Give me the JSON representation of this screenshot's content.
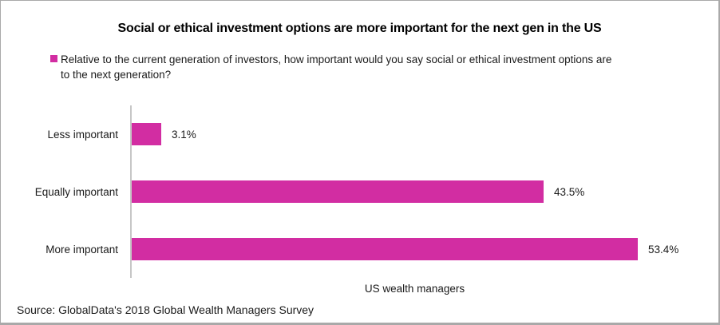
{
  "title": "Social or ethical investment options are more important for the next gen in the US",
  "legend": {
    "swatch_color": "#d22da2",
    "lines": {
      "0": "Relative to the current generation of investors, how important would you say social or ethical investment options are",
      "1": "to the next generation?"
    },
    "full_text": "Relative to the current generation of investors, how important would you say social or ethical investment options are to the next generation?"
  },
  "chart_data": {
    "type": "bar",
    "orientation": "horizontal",
    "title": "Social or ethical investment options are more important for the next gen in the US",
    "series_name": "Relative to the current generation of investors, how important would you say social or ethical investment options are to the next generation?",
    "categories": [
      "Less important",
      "Equally important",
      "More important"
    ],
    "values": [
      3.1,
      43.5,
      53.4
    ],
    "value_labels": [
      "3.1%",
      "43.5%",
      "53.4%"
    ],
    "xlabel": "US wealth managers",
    "ylabel": "",
    "xlim": [
      0,
      60
    ],
    "grid": false,
    "data_labels": true,
    "legend_position": "top-left",
    "bar_color": "#d22da2",
    "axis_line_color": "#c6c6c6"
  },
  "footer": {
    "source": "Source: GlobalData's 2018 Global Wealth Managers Survey"
  }
}
